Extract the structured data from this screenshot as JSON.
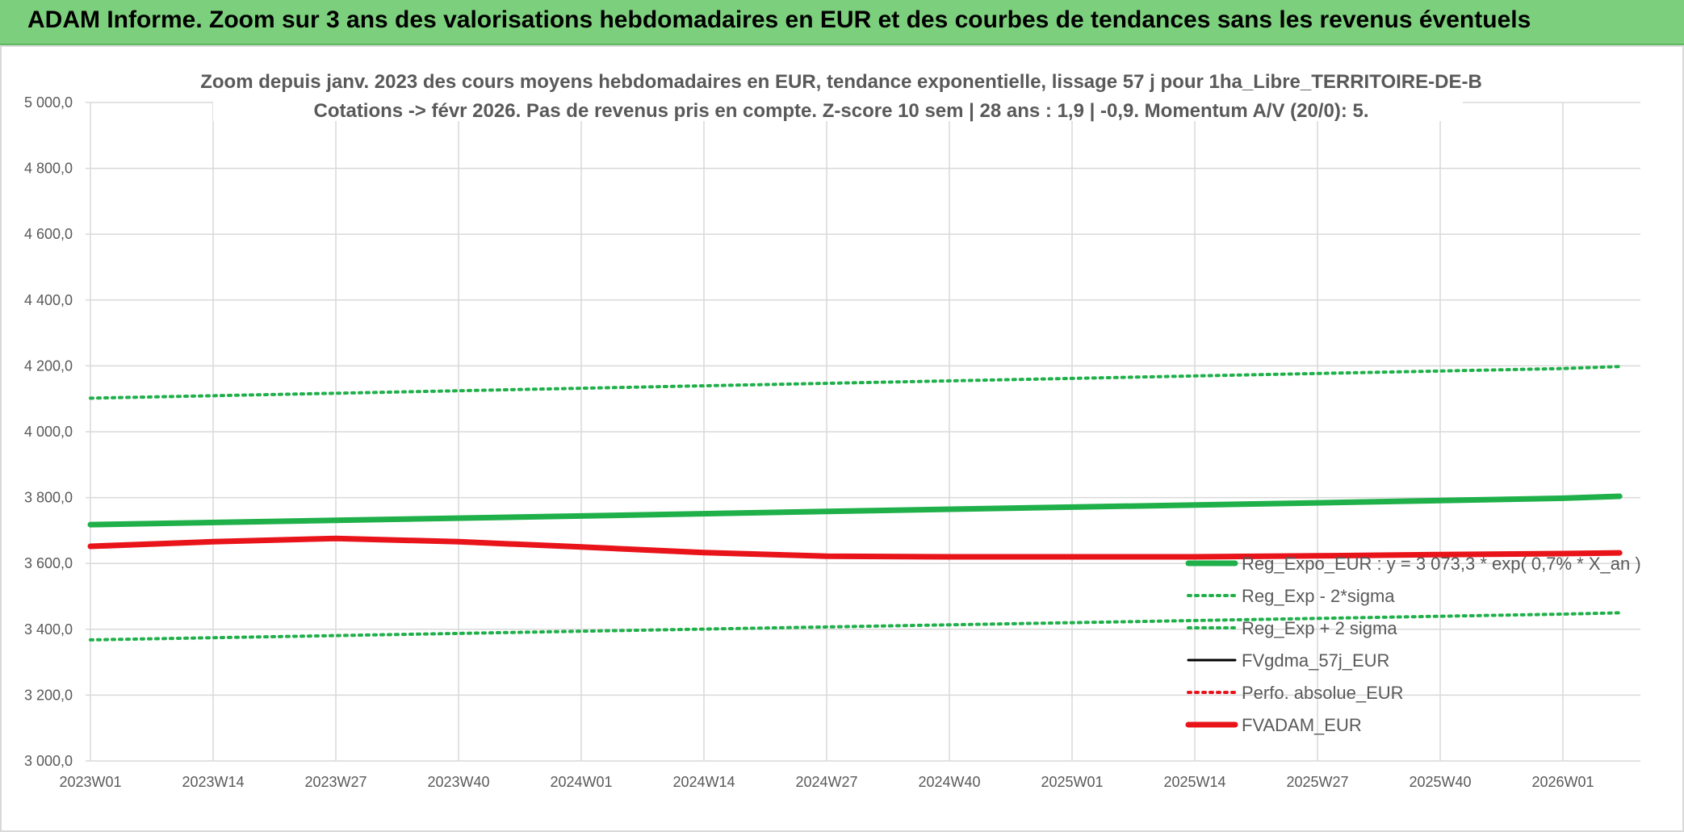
{
  "banner": {
    "title": "ADAM Informe. Zoom sur 3 ans des valorisations hebdomadaires en EUR et des courbes de tendances sans les revenus éventuels"
  },
  "colors": {
    "banner_bg": "#7ccf7c",
    "green": "#1fb04a",
    "red": "#e8141a",
    "black": "#000000",
    "grid": "#d9d9d9",
    "text": "#595959"
  },
  "chart_data": {
    "type": "line",
    "title": [
      "Zoom depuis janv. 2023 des cours moyens hebdomadaires en EUR, tendance exponentielle, lissage 57 j pour 1ha_Libre_TERRITOIRE-DE-B",
      "Cotations -> févr 2026. Pas de revenus pris en compte. Z-score 10 sem | 28 ans : 1,9 | -0,9. Momentum A/V (20/0): 5."
    ],
    "xlabel": "",
    "ylabel": "",
    "ylim": [
      3000,
      5000
    ],
    "y_ticks": [
      "3 000,0",
      "3 200,0",
      "3 400,0",
      "3 600,0",
      "3 800,0",
      "4 000,0",
      "4 200,0",
      "4 400,0",
      "4 600,0",
      "4 800,0",
      "5 000,0"
    ],
    "x_ticks": [
      "2023W01",
      "2023W14",
      "2023W27",
      "2023W40",
      "2024W01",
      "2024W14",
      "2024W27",
      "2024W40",
      "2025W01",
      "2025W14",
      "2025W27",
      "2025W40",
      "2026W01"
    ],
    "grid": true,
    "legend_position": "bottom-right",
    "series": [
      {
        "name": "Reg_Expo_EUR : y = 3 073,3 * exp( 0,7% *  X_an )",
        "style": "solid-thick",
        "color": "#1fb04a",
        "x": [
          "2023W01",
          "2023W27",
          "2024W01",
          "2024W27",
          "2025W01",
          "2025W27",
          "2026W01",
          "2026W07"
        ],
        "values": [
          3718,
          3731,
          3744,
          3758,
          3771,
          3784,
          3798,
          3804
        ]
      },
      {
        "name": "Reg_Exp - 2*sigma",
        "style": "dotted",
        "color": "#1fb04a",
        "x": [
          "2023W01",
          "2023W27",
          "2024W01",
          "2024W27",
          "2025W01",
          "2025W27",
          "2026W01",
          "2026W07"
        ],
        "values": [
          3368,
          3381,
          3394,
          3407,
          3420,
          3433,
          3446,
          3450
        ]
      },
      {
        "name": "Reg_Exp + 2 sigma",
        "style": "dotted",
        "color": "#1fb04a",
        "x": [
          "2023W01",
          "2023W27",
          "2024W01",
          "2024W27",
          "2025W01",
          "2025W27",
          "2026W01",
          "2026W07"
        ],
        "values": [
          4102,
          4117,
          4132,
          4147,
          4162,
          4177,
          4192,
          4198
        ]
      },
      {
        "name": "FVgdma_57j_EUR",
        "style": "solid",
        "color": "#000000",
        "x": [
          "2023W01",
          "2023W14",
          "2023W27",
          "2023W40",
          "2024W01",
          "2024W14",
          "2024W27",
          "2024W40",
          "2025W01",
          "2025W14",
          "2025W27",
          "2025W40",
          "2026W01",
          "2026W07"
        ],
        "values": [
          3652,
          3666,
          3676,
          3666,
          3650,
          3633,
          3622,
          3620,
          3620,
          3620,
          3623,
          3627,
          3630,
          3632
        ]
      },
      {
        "name": "Perfo. absolue_EUR",
        "style": "dotted",
        "color": "#e8141a",
        "x": [],
        "values": []
      },
      {
        "name": "FVADAM_EUR",
        "style": "solid-thick",
        "color": "#e8141a",
        "x": [
          "2023W01",
          "2023W14",
          "2023W27",
          "2023W40",
          "2024W01",
          "2024W14",
          "2024W27",
          "2024W40",
          "2025W01",
          "2025W14",
          "2025W27",
          "2025W40",
          "2026W01",
          "2026W07"
        ],
        "values": [
          3652,
          3666,
          3676,
          3666,
          3650,
          3633,
          3622,
          3620,
          3620,
          3620,
          3623,
          3627,
          3630,
          3632
        ]
      }
    ]
  }
}
